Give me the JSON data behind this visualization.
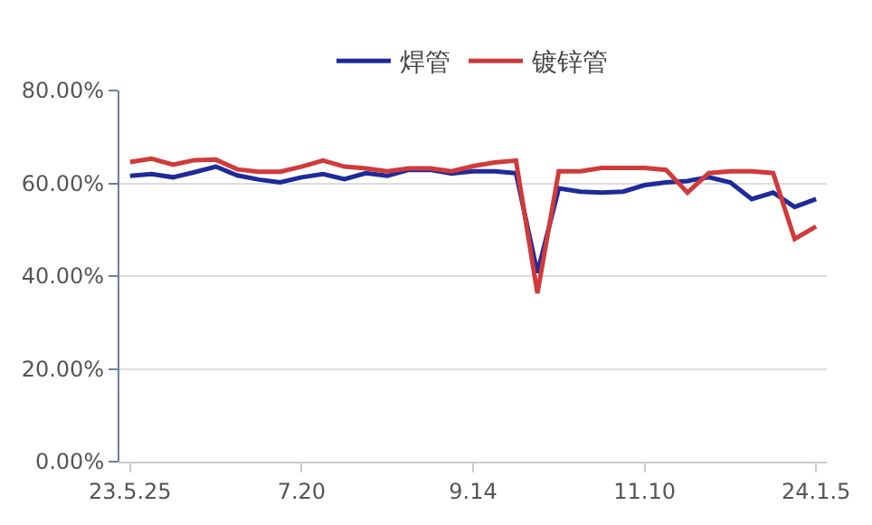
{
  "chart_data": {
    "type": "line",
    "categories": [
      "23.5.25",
      null,
      null,
      null,
      null,
      null,
      null,
      null,
      "7.20",
      null,
      null,
      null,
      null,
      null,
      null,
      null,
      "9.14",
      null,
      null,
      null,
      null,
      null,
      null,
      null,
      "11.10",
      null,
      null,
      null,
      null,
      null,
      null,
      null,
      "24.1.5"
    ],
    "series": [
      {
        "name": "焊管",
        "color": "#1f2a9a",
        "values": [
          61.6,
          62.0,
          61.3,
          62.4,
          63.6,
          61.7,
          60.8,
          60.2,
          61.3,
          62.0,
          60.9,
          62.2,
          61.6,
          62.9,
          62.9,
          62.1,
          62.6,
          62.6,
          62.2,
          40.7,
          58.9,
          58.2,
          58.0,
          58.2,
          59.6,
          60.2,
          60.5,
          61.3,
          60.2,
          56.6,
          58.0,
          54.9,
          56.6
        ]
      },
      {
        "name": "镀锌管",
        "color": "#d03a3a",
        "values": [
          64.6,
          65.3,
          64.0,
          65.0,
          65.1,
          63.0,
          62.5,
          62.5,
          63.6,
          64.9,
          63.6,
          63.2,
          62.6,
          63.2,
          63.2,
          62.6,
          63.7,
          64.5,
          64.9,
          36.3,
          62.6,
          62.6,
          63.3,
          63.3,
          63.3,
          62.9,
          58.0,
          62.2,
          62.6,
          62.6,
          62.2,
          48.0,
          50.7
        ]
      }
    ],
    "ylim": [
      0,
      80
    ],
    "yticks": [
      {
        "value": 0,
        "label": "0.00%"
      },
      {
        "value": 20,
        "label": "20.00%"
      },
      {
        "value": 40,
        "label": "40.00%"
      },
      {
        "value": 60,
        "label": "60.00%"
      },
      {
        "value": 80,
        "label": "80.00%"
      }
    ],
    "grid": "y",
    "legend": "top",
    "marker": "none",
    "line_style": "solid"
  }
}
